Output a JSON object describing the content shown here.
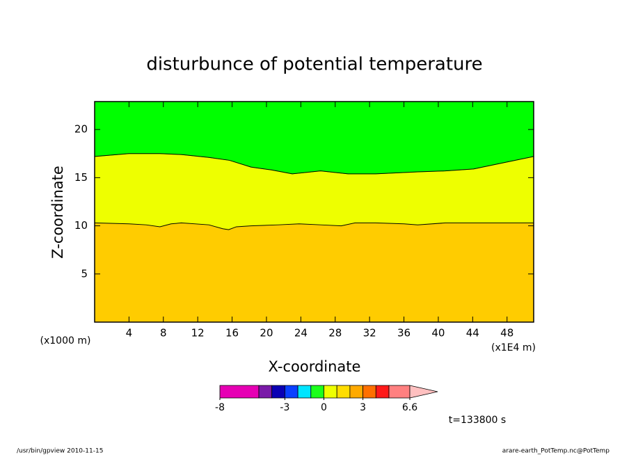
{
  "chart_data": {
    "type": "contour",
    "title": "disturbunce of potential temperature",
    "xlabel": "X-coordinate",
    "ylabel": "Z-coordinate",
    "xunit": "(x1E4 m)",
    "yunit": "(x1000 m)",
    "xlim": [
      0,
      51.1
    ],
    "ylim": [
      0,
      22.9
    ],
    "xticks": [
      4,
      8,
      12,
      16,
      20,
      24,
      28,
      32,
      36,
      40,
      44,
      48
    ],
    "yticks": [
      5,
      10,
      15,
      20
    ],
    "fill_colors": [
      "#ffcc00",
      "#eeff00",
      "#00ff00"
    ],
    "contours": [
      {
        "x": [
          0.0,
          4.0,
          6.0,
          7.6,
          8.9,
          10.1,
          13.3,
          14.9,
          15.6,
          16.5,
          18.2,
          21.4,
          23.8,
          26.3,
          28.7,
          30.3,
          32.7,
          36.0,
          37.6,
          40.8,
          45.7,
          51.1
        ],
        "values": [
          10.3,
          10.2,
          10.1,
          9.9,
          10.2,
          10.3,
          10.1,
          9.7,
          9.6,
          9.9,
          10.0,
          10.1,
          10.2,
          10.1,
          10.0,
          10.3,
          10.3,
          10.2,
          10.1,
          10.3,
          10.3,
          10.3
        ]
      },
      {
        "x": [
          0.0,
          4.0,
          7.6,
          10.1,
          13.3,
          15.7,
          18.2,
          20.6,
          23.0,
          26.3,
          29.5,
          32.7,
          37.6,
          40.8,
          44.1,
          47.3,
          51.1
        ],
        "values": [
          17.2,
          17.5,
          17.5,
          17.4,
          17.1,
          16.8,
          16.1,
          15.8,
          15.4,
          15.7,
          15.4,
          15.4,
          15.6,
          15.7,
          15.9,
          16.5,
          17.2
        ]
      }
    ],
    "colorbar": {
      "levels": [
        -8,
        -5,
        -4,
        -3,
        -2,
        -1,
        0,
        1,
        2,
        3,
        4,
        5,
        6.6
      ],
      "colors": [
        "#e600b4",
        "#7a1aa8",
        "#0a00b4",
        "#0a40ff",
        "#00e5ff",
        "#1cff1c",
        "#eeff00",
        "#ffdd00",
        "#ffaa00",
        "#ff7000",
        "#ff1a1a",
        "#ff8080"
      ],
      "extend_color": "#ffc0c0",
      "ticks": [
        -8,
        -3,
        0,
        3,
        6.6
      ]
    },
    "time_label": "t=133800 s",
    "footer_left": "/usr/bin/gpview  2010-11-15",
    "footer_right": "arare-earth_PotTemp.nc@PotTemp"
  }
}
